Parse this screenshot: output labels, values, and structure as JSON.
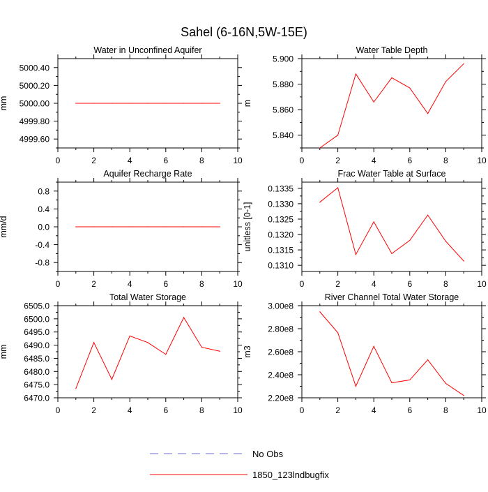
{
  "figure_title": "Sahel (6-16N,5W-15E)",
  "colors": {
    "model": "#ff0000",
    "obs": "#6b6bd6",
    "axis": "#000000"
  },
  "legend": [
    {
      "label": "No Obs",
      "style": "dashed",
      "color": "#6b6bd6"
    },
    {
      "label": "1850_123lndbugfix",
      "style": "solid",
      "color": "#ff0000"
    }
  ],
  "chart_data": [
    {
      "id": "aquifer",
      "type": "line",
      "title": "Water in Unconfined Aquifer",
      "ylabel": "mm",
      "xlim": [
        0,
        10
      ],
      "ylim": [
        4999.5,
        5000.5
      ],
      "xticks": [
        0,
        2,
        4,
        6,
        8,
        10
      ],
      "xtick_labels": [
        "0",
        "2",
        "4",
        "6",
        "8",
        "10"
      ],
      "yticks": [
        4999.6,
        4999.8,
        5000.0,
        5000.2,
        5000.4
      ],
      "ytick_labels": [
        "4999.60",
        "4999.80",
        "5000.00",
        "5000.20",
        "5000.40"
      ],
      "series": [
        {
          "name": "1850_123lndbugfix",
          "x": [
            1,
            2,
            3,
            4,
            5,
            6,
            7,
            8,
            9
          ],
          "values": [
            5000,
            5000,
            5000,
            5000,
            5000,
            5000,
            5000,
            5000,
            5000
          ]
        }
      ]
    },
    {
      "id": "wtd",
      "type": "line",
      "title": "Water Table Depth",
      "ylabel": "m",
      "xlim": [
        0,
        10
      ],
      "ylim": [
        5.83,
        5.9
      ],
      "xticks": [
        0,
        2,
        4,
        6,
        8,
        10
      ],
      "xtick_labels": [
        "0",
        "2",
        "4",
        "6",
        "8",
        "10"
      ],
      "yticks": [
        5.84,
        5.86,
        5.88,
        5.9
      ],
      "ytick_labels": [
        "5.840",
        "5.860",
        "5.880",
        "5.900"
      ],
      "series": [
        {
          "name": "1850_123lndbugfix",
          "x": [
            1,
            2,
            3,
            4,
            5,
            6,
            7,
            8,
            9
          ],
          "values": [
            5.83,
            5.84,
            5.888,
            5.866,
            5.885,
            5.877,
            5.857,
            5.882,
            5.896
          ]
        }
      ]
    },
    {
      "id": "recharge",
      "type": "line",
      "title": "Aquifer Recharge Rate",
      "ylabel": "mm/d",
      "xlim": [
        0,
        10
      ],
      "ylim": [
        -1.0,
        1.0
      ],
      "xticks": [
        0,
        2,
        4,
        6,
        8,
        10
      ],
      "xtick_labels": [
        "0",
        "2",
        "4",
        "6",
        "8",
        "10"
      ],
      "yticks": [
        -0.8,
        -0.4,
        0.0,
        0.4,
        0.8
      ],
      "ytick_labels": [
        "-0.8",
        "-0.4",
        "0.0",
        "0.4",
        "0.8"
      ],
      "series": [
        {
          "name": "1850_123lndbugfix",
          "x": [
            1,
            2,
            3,
            4,
            5,
            6,
            7,
            8,
            9
          ],
          "values": [
            0,
            0,
            0,
            0,
            0,
            0,
            0,
            0,
            0
          ]
        }
      ]
    },
    {
      "id": "fwt",
      "type": "line",
      "title": "Frac Water Table at Surface",
      "ylabel": "unitless [0-1]",
      "xlim": [
        0,
        10
      ],
      "ylim": [
        0.1308,
        0.1337
      ],
      "xticks": [
        0,
        2,
        4,
        6,
        8,
        10
      ],
      "xtick_labels": [
        "0",
        "2",
        "4",
        "6",
        "8",
        "10"
      ],
      "yticks": [
        0.131,
        0.1315,
        0.132,
        0.1325,
        0.133,
        0.1335
      ],
      "ytick_labels": [
        "0.1310",
        "0.1315",
        "0.1320",
        "0.1325",
        "0.1330",
        "0.1335"
      ],
      "series": [
        {
          "name": "1850_123lndbugfix",
          "x": [
            1,
            2,
            3,
            4,
            5,
            6,
            7,
            8,
            9
          ],
          "values": [
            0.13305,
            0.13352,
            0.13135,
            0.13241,
            0.13138,
            0.13181,
            0.13263,
            0.13178,
            0.13114
          ]
        }
      ]
    },
    {
      "id": "tws",
      "type": "line",
      "title": "Total Water Storage",
      "ylabel": "mm",
      "xlim": [
        0,
        10
      ],
      "ylim": [
        6470,
        6505
      ],
      "xticks": [
        0,
        2,
        4,
        6,
        8,
        10
      ],
      "xtick_labels": [
        "0",
        "2",
        "4",
        "6",
        "8",
        "10"
      ],
      "yticks": [
        6470,
        6475,
        6480,
        6485,
        6490,
        6495,
        6500,
        6505
      ],
      "ytick_labels": [
        "6470.0",
        "6475.0",
        "6480.0",
        "6485.0",
        "6490.0",
        "6495.0",
        "6500.0",
        "6505.0"
      ],
      "series": [
        {
          "name": "1850_123lndbugfix",
          "x": [
            1,
            2,
            3,
            4,
            5,
            6,
            7,
            8,
            9
          ],
          "values": [
            6473.5,
            6491.0,
            6477.0,
            6493.5,
            6491.0,
            6486.5,
            6500.5,
            6489.2,
            6487.7
          ]
        }
      ]
    },
    {
      "id": "river",
      "type": "line",
      "title": "River Channel Total Water Storage",
      "ylabel": "m3",
      "xlim": [
        0,
        10
      ],
      "ylim": [
        220000000,
        300000000
      ],
      "xticks": [
        0,
        2,
        4,
        6,
        8,
        10
      ],
      "xtick_labels": [
        "0",
        "2",
        "4",
        "6",
        "8",
        "10"
      ],
      "yticks": [
        220000000,
        240000000,
        260000000,
        280000000,
        300000000
      ],
      "ytick_labels": [
        "2.20e8",
        "2.40e8",
        "2.60e8",
        "2.80e8",
        "3.00e8"
      ],
      "series": [
        {
          "name": "1850_123lndbugfix",
          "x": [
            1,
            2,
            3,
            4,
            5,
            6,
            7,
            8,
            9
          ],
          "values": [
            294700000,
            276500000,
            230000000,
            264700000,
            233000000,
            235500000,
            253000000,
            232500000,
            222000000
          ]
        }
      ]
    }
  ]
}
